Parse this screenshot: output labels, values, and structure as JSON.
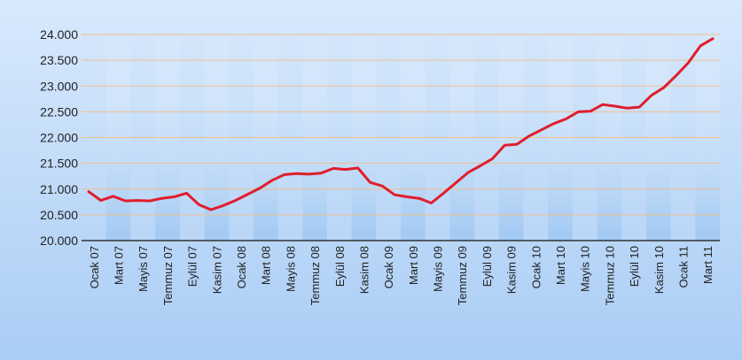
{
  "chart_data": {
    "type": "line",
    "title": "",
    "xlabel": "",
    "ylabel": "",
    "ylim": [
      20000,
      24000
    ],
    "grid": true,
    "y_ticks": [
      "20.000",
      "20.500",
      "21.000",
      "21.500",
      "22.000",
      "22.500",
      "23.000",
      "23.500",
      "24.000"
    ],
    "x_tick_labels": [
      "Ocak 07",
      "Mart 07",
      "Mayis 07",
      "Temmuz 07",
      "Eylül 07",
      "Kasim 07",
      "Ocak 08",
      "Mart 08",
      "Mayis 08",
      "Temmuz 08",
      "Eylül 08",
      "Kasim 08",
      "Ocak 09",
      "Mart 09",
      "Mayis 09",
      "Temmuz 09",
      "Eylül 09",
      "Kasim 09",
      "Ocak 10",
      "Mart 10",
      "Mayis 10",
      "Temmuz 10",
      "Eylül 10",
      "Kasim 10",
      "Ocak 11",
      "Mart 11"
    ],
    "series": [
      {
        "values": [
          20950,
          20780,
          20860,
          20770,
          20780,
          20770,
          20820,
          20850,
          20920,
          20700,
          20600,
          20680,
          20780,
          20900,
          21020,
          21170,
          21280,
          21300,
          21290,
          21310,
          21400,
          21380,
          21410,
          21130,
          21060,
          20890,
          20850,
          20820,
          20730,
          20920,
          21120,
          21320,
          21450,
          21590,
          21850,
          21870,
          22030,
          22150,
          22270,
          22360,
          22500,
          22510,
          22640,
          22610,
          22570,
          22590,
          22820,
          22970,
          23200,
          23450,
          23780,
          23920
        ]
      }
    ],
    "colors": {
      "line": "#e01e2b",
      "gridline": "#f0c08a",
      "band": "#b8d6f7",
      "axis": "#333333",
      "background_top": "#cfe3fb",
      "background_bottom": "#a9ccf5"
    }
  }
}
